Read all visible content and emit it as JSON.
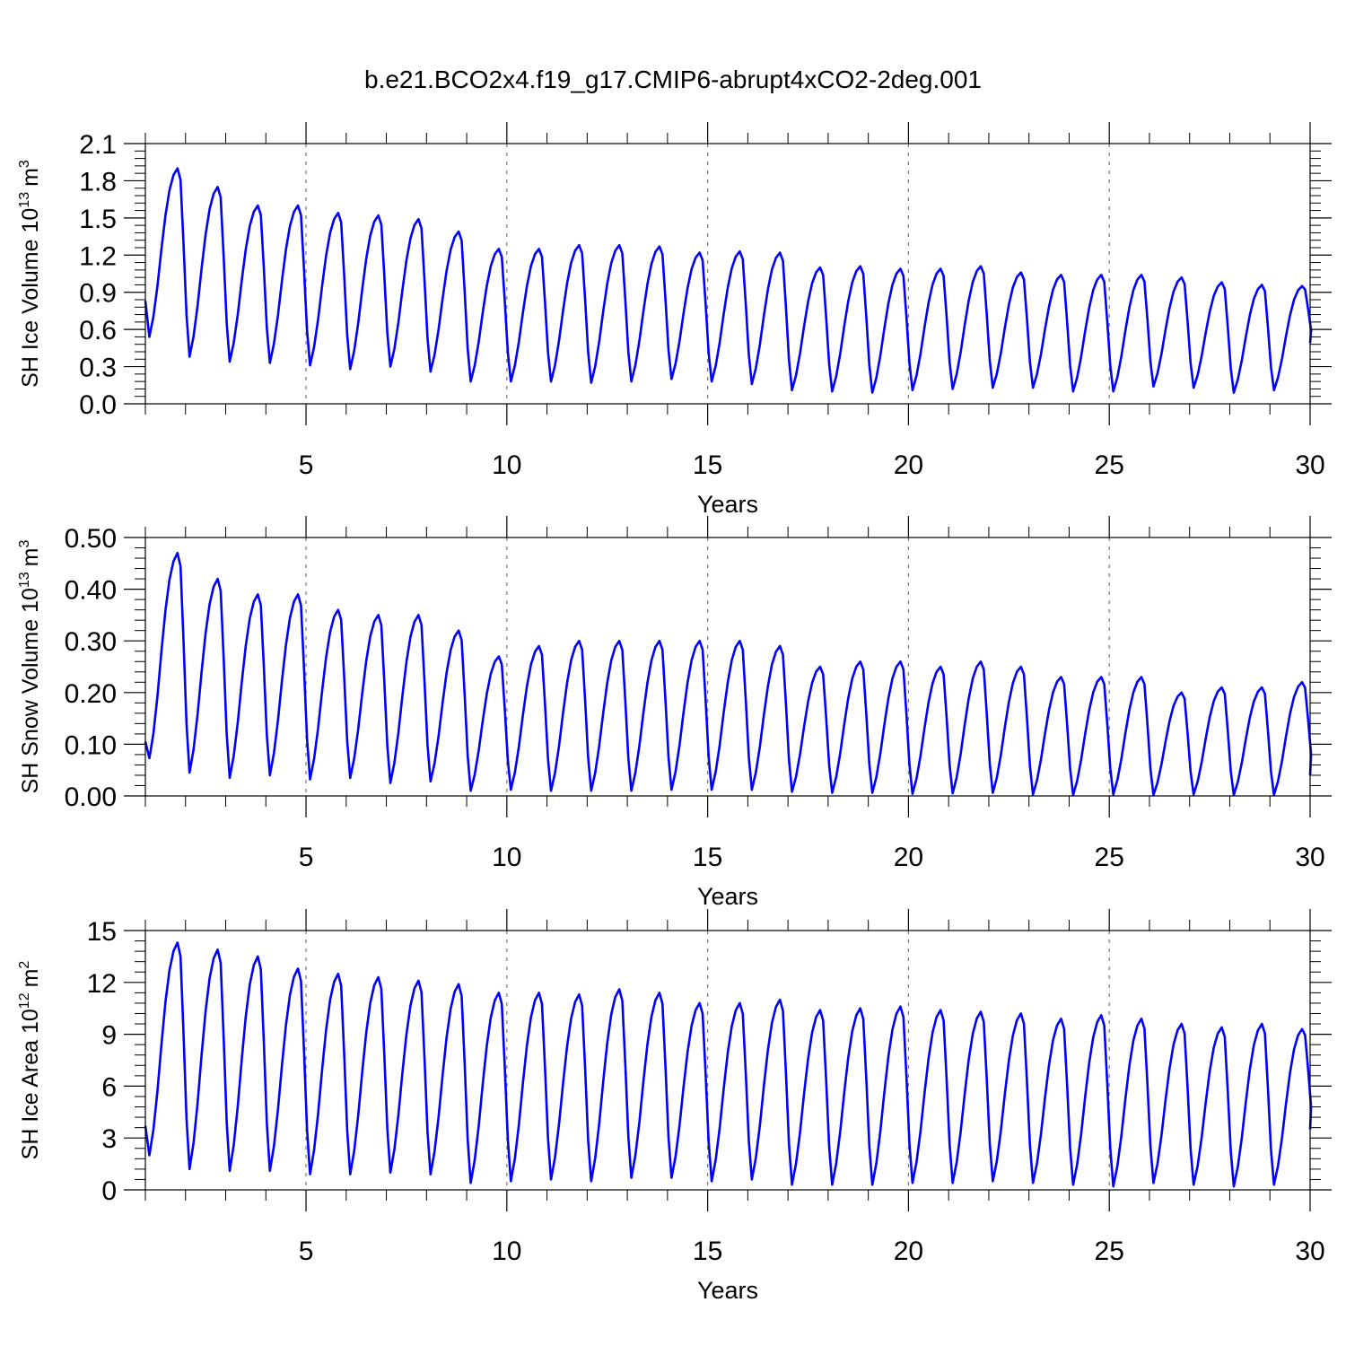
{
  "title": "b.e21.BCO2x4.f19_g17.CMIP6-abrupt4xCO2-2deg.001",
  "line_color": "#0000ff",
  "chart_data": [
    {
      "type": "line",
      "ylabel": "SH Ice Volume 10",
      "ylabel_sup": "13",
      "ylabel_unit": "m",
      "ylabel_unit_sup": "3",
      "xlabel": "Years",
      "xlim": [
        1,
        30
      ],
      "ylim": [
        0,
        2.1
      ],
      "ytick_values": [
        0,
        0.3,
        0.6,
        0.9,
        1.2,
        1.5,
        1.8,
        2.1
      ],
      "ytick_labels": [
        "0.0",
        "0.3",
        "0.6",
        "0.9",
        "1.2",
        "1.5",
        "1.8",
        "2.1"
      ],
      "xtick_values": [
        5,
        10,
        15,
        20,
        25,
        30
      ],
      "xtick_labels": [
        "5",
        "10",
        "15",
        "20",
        "25",
        "30"
      ],
      "annual_max": [
        1.9,
        1.75,
        1.6,
        1.6,
        1.54,
        1.52,
        1.49,
        1.39,
        1.25,
        1.25,
        1.28,
        1.28,
        1.27,
        1.22,
        1.23,
        1.22,
        1.1,
        1.11,
        1.09,
        1.09,
        1.11,
        1.06,
        1.04,
        1.04,
        1.04,
        1.02,
        0.98,
        0.96,
        0.95
      ],
      "annual_min": [
        0.54,
        0.38,
        0.34,
        0.33,
        0.31,
        0.28,
        0.3,
        0.26,
        0.18,
        0.18,
        0.18,
        0.17,
        0.18,
        0.2,
        0.18,
        0.16,
        0.11,
        0.1,
        0.09,
        0.11,
        0.12,
        0.13,
        0.13,
        0.1,
        0.1,
        0.14,
        0.13,
        0.09,
        0.11
      ],
      "start_value": 0.83,
      "end_value": 0.49
    },
    {
      "type": "line",
      "ylabel": "SH Snow Volume 10",
      "ylabel_sup": "13",
      "ylabel_unit": "m",
      "ylabel_unit_sup": "3",
      "xlabel": "Years",
      "xlim": [
        1,
        30
      ],
      "ylim": [
        0,
        0.5
      ],
      "ytick_values": [
        0,
        0.1,
        0.2,
        0.3,
        0.4,
        0.5
      ],
      "ytick_labels": [
        "0.00",
        "0.10",
        "0.20",
        "0.30",
        "0.40",
        "0.50"
      ],
      "xtick_values": [
        5,
        10,
        15,
        20,
        25,
        30
      ],
      "xtick_labels": [
        "5",
        "10",
        "15",
        "20",
        "25",
        "30"
      ],
      "annual_max": [
        0.47,
        0.42,
        0.39,
        0.39,
        0.36,
        0.35,
        0.35,
        0.32,
        0.27,
        0.29,
        0.3,
        0.3,
        0.3,
        0.3,
        0.3,
        0.29,
        0.25,
        0.26,
        0.26,
        0.25,
        0.26,
        0.25,
        0.23,
        0.23,
        0.23,
        0.2,
        0.21,
        0.21,
        0.22
      ],
      "annual_min": [
        0.073,
        0.045,
        0.035,
        0.04,
        0.032,
        0.035,
        0.025,
        0.028,
        0.01,
        0.012,
        0.01,
        0.01,
        0.01,
        0.012,
        0.012,
        0.012,
        0.008,
        0.006,
        0.006,
        0.004,
        0.005,
        0.006,
        0.003,
        0.002,
        0.003,
        0.002,
        0.003,
        0.002,
        0.002
      ],
      "start_value": 0.105,
      "end_value": 0.04
    },
    {
      "type": "line",
      "ylabel": "SH Ice Area 10",
      "ylabel_sup": "12",
      "ylabel_unit": "m",
      "ylabel_unit_sup": "2",
      "xlabel": "Years",
      "xlim": [
        1,
        30
      ],
      "ylim": [
        0,
        15
      ],
      "ytick_values": [
        0,
        3,
        6,
        9,
        12,
        15
      ],
      "ytick_labels": [
        "0",
        "3",
        "6",
        "9",
        "12",
        "15"
      ],
      "xtick_values": [
        5,
        10,
        15,
        20,
        25,
        30
      ],
      "xtick_labels": [
        "5",
        "10",
        "15",
        "20",
        "25",
        "30"
      ],
      "annual_max": [
        14.3,
        13.9,
        13.5,
        12.8,
        12.5,
        12.3,
        12.1,
        11.9,
        11.4,
        11.4,
        11.3,
        11.6,
        11.4,
        10.8,
        10.8,
        11.0,
        10.4,
        10.5,
        10.6,
        10.4,
        10.3,
        10.2,
        9.9,
        10.1,
        9.9,
        9.6,
        9.4,
        9.6,
        9.3
      ],
      "annual_min": [
        2.0,
        1.2,
        1.1,
        1.1,
        0.9,
        0.9,
        1.0,
        0.9,
        0.4,
        0.5,
        0.6,
        0.5,
        0.7,
        0.7,
        0.5,
        0.6,
        0.3,
        0.3,
        0.3,
        0.4,
        0.4,
        0.5,
        0.4,
        0.3,
        0.2,
        0.4,
        0.3,
        0.2,
        0.3
      ],
      "start_value": 3.7,
      "end_value": 3.5
    }
  ]
}
